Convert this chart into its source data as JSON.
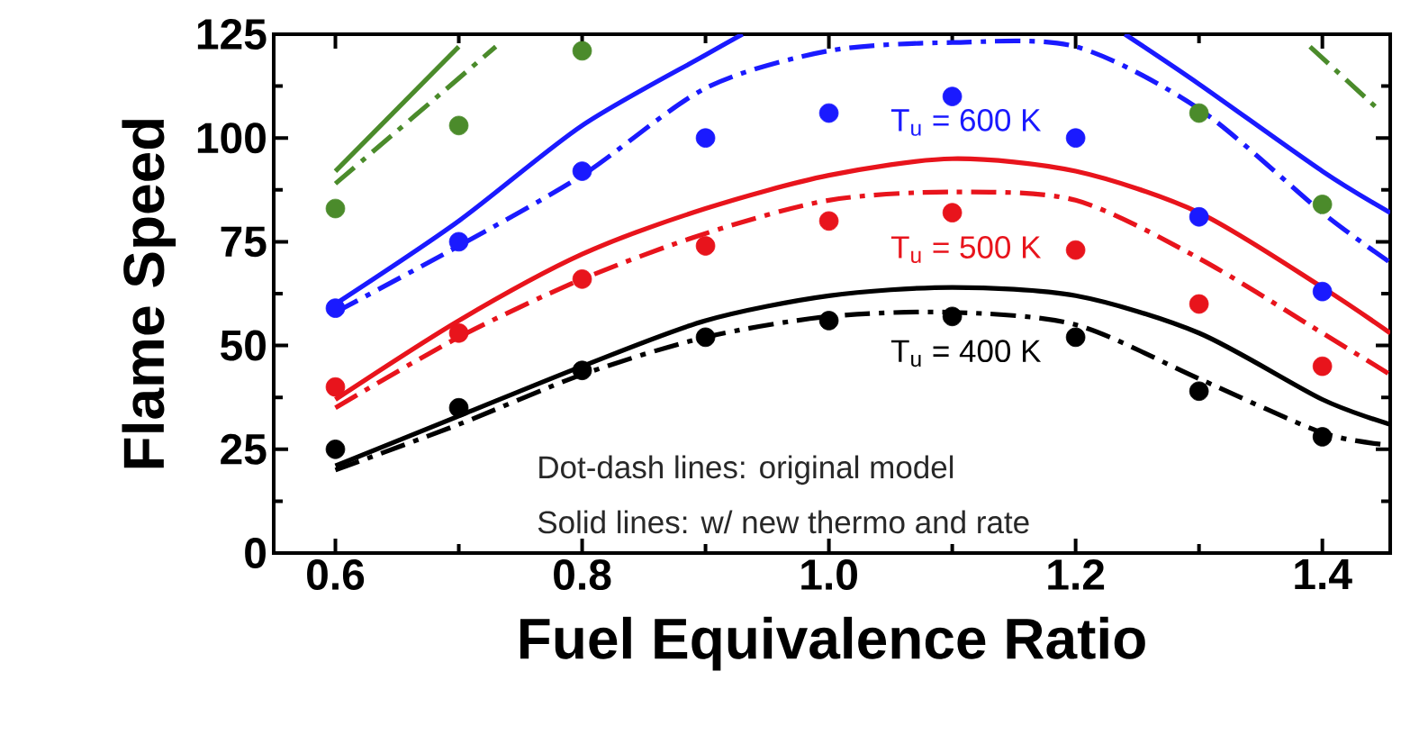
{
  "chart_data": {
    "type": "line",
    "xlabel": "Fuel Equivalence Ratio",
    "ylabel": "Flame Speed",
    "xlim": [
      0.55,
      1.455
    ],
    "ylim": [
      0,
      125
    ],
    "xticks": [
      0.6,
      0.8,
      {
        "value": 1.0,
        "label": "1.0"
      },
      1.2,
      1.4
    ],
    "yticks": [
      0,
      25,
      50,
      75,
      100,
      125
    ],
    "x": [
      0.6,
      0.7,
      0.8,
      0.9,
      1.0,
      1.1,
      1.2,
      1.3,
      1.4
    ],
    "series": [
      {
        "type": "scatter",
        "marker": "circle",
        "color": "#000000",
        "values": [
          25,
          35,
          44,
          52,
          56,
          57,
          52,
          39,
          28
        ]
      },
      {
        "line_style": "solid",
        "color": "#000000",
        "x": [
          0.6,
          0.7,
          0.8,
          0.9,
          1.0,
          1.1,
          1.2,
          1.3,
          1.4,
          1.455
        ],
        "values": [
          21,
          33,
          45,
          56,
          62,
          64,
          62,
          53,
          37,
          31
        ]
      },
      {
        "line_style": "dashed",
        "color": "#000000",
        "x": [
          0.6,
          0.7,
          0.8,
          0.9,
          1.0,
          1.1,
          1.2,
          1.3,
          1.4,
          1.455
        ],
        "values": [
          20,
          31,
          43,
          52,
          57,
          58,
          55,
          42,
          29,
          26
        ]
      },
      {
        "type": "scatter",
        "marker": "circle",
        "color": "#e8141c",
        "values": [
          40,
          53,
          66,
          74,
          80,
          82,
          73,
          60,
          45
        ]
      },
      {
        "line_style": "solid",
        "color": "#e8141c",
        "x": [
          0.6,
          0.7,
          0.8,
          0.9,
          1.0,
          1.1,
          1.2,
          1.3,
          1.4,
          1.455
        ],
        "values": [
          37,
          56,
          72,
          83,
          91,
          95,
          92,
          82,
          64,
          53
        ]
      },
      {
        "line_style": "dashed",
        "color": "#e8141c",
        "x": [
          0.6,
          0.7,
          0.8,
          0.9,
          1.0,
          1.1,
          1.2,
          1.3,
          1.4,
          1.455
        ],
        "values": [
          35,
          52,
          66,
          77,
          85,
          87,
          85,
          71,
          53,
          43
        ]
      },
      {
        "type": "scatter",
        "marker": "circle",
        "color": "#1a1aff",
        "values": [
          59,
          75,
          92,
          100,
          106,
          110,
          100,
          81,
          63
        ]
      },
      {
        "line_style": "solid",
        "color": "#1a1aff",
        "x": [
          0.6,
          0.7,
          0.8,
          0.9,
          0.93,
          1.0,
          1.24,
          1.3,
          1.4,
          1.455
        ],
        "values": [
          60,
          80,
          103,
          120,
          125,
          null,
          125,
          113,
          92,
          82
        ]
      },
      {
        "line_style": "dashed",
        "color": "#1a1aff",
        "x": [
          0.6,
          0.7,
          0.8,
          0.9,
          1.0,
          1.1,
          1.2,
          1.3,
          1.4,
          1.455
        ],
        "values": [
          58,
          74,
          91,
          112,
          121,
          123,
          122,
          107,
          82,
          70
        ]
      },
      {
        "type": "scatter",
        "marker": "circle",
        "color": "#4b8b2b",
        "values": [
          83,
          103,
          121,
          null,
          null,
          null,
          null,
          106,
          84
        ]
      },
      {
        "line_style": "solid",
        "color": "#4b8b2b",
        "x": [
          0.6,
          0.7
        ],
        "values": [
          92,
          122
        ]
      },
      {
        "line_style": "dashed",
        "color": "#4b8b2b",
        "x": [
          0.6,
          0.73,
          1.0,
          1.39,
          1.445
        ],
        "values": [
          89,
          122,
          null,
          122,
          107
        ]
      }
    ],
    "annotations": [
      "T$_{u}$ = 600 K",
      "T$_{u}$ = 500 K",
      "T$_{u}$ = 400 K",
      "Dot-dash lines: original model",
      "Solid lines: w/ new thermo and rate"
    ]
  }
}
